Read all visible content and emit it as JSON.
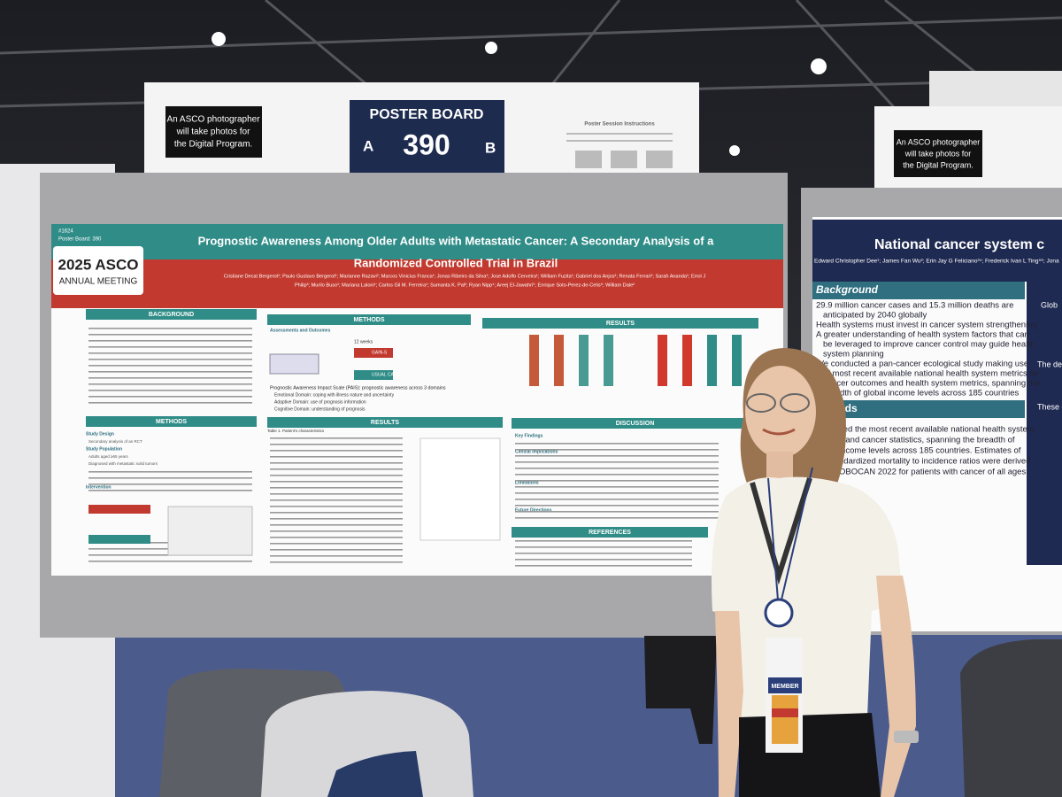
{
  "signs": {
    "photographer_left": [
      "An ASCO photographer",
      "will take photos for",
      "the Digital Program."
    ],
    "photographer_right": [
      "An ASCO photographer",
      "will take photos for",
      "the Digital Program."
    ]
  },
  "poster_board": {
    "label": "POSTER BOARD",
    "left": "A",
    "number": "390",
    "right": "B",
    "instructions": "Poster Session Instructions"
  },
  "poster": {
    "id": "#1624",
    "board": "Poster Board: 390",
    "logo": "2025 ASCO",
    "logo_sub": "ANNUAL MEETING",
    "title": [
      "Prognostic Awareness Among Older Adults with Metastatic Cancer: A Secondary Analysis of a",
      "Randomized Controlled Trial in Brazil"
    ],
    "authors": [
      "Cristiane Decat Bergerot¹; Paulo Gustavo Bergerot¹; Marianne Razavi²; Marcos Vinicius Franca¹; Jonas Ribeiro da Silva¹; Jose Adolfo Cerveira¹; William Fuzita¹; Gabriel dos Anjos¹; Renata Ferrari¹; Sarah Ananda¹; Errol J",
      "Philip³; Murilo Buso¹; Mariana Laloni¹; Carlos Gil M. Ferreira¹; Sumanta K. Pal²; Ryan Nipp⁴; Areej El-Jawahri⁵; Enrique Soto-Perez-de-Celis⁶; William Dale²"
    ],
    "headings": [
      "BACKGROUND",
      "METHODS",
      "RESULTS",
      "METHODS",
      "RESULTS",
      "DISCUSSION",
      "REFERENCES"
    ],
    "subheadings": [
      "Assessments and Outcomes",
      "Study Design",
      "Study Population",
      "Intervention",
      "Key Findings",
      "Clinical Implications",
      "Limitations",
      "Future Directions"
    ],
    "labels": [
      "12 weeks",
      "GAIN-S",
      "USUAL CARE",
      "Prognostic Awareness Impact Scale (PAIS): prognostic awareness across 3 domains",
      "Emotional Domain: coping with illness nature and uncertainty",
      "Adaptive Domain: use of prognosis information",
      "Cognitive Domain: understanding of prognosis",
      "Table 1. Patient's characteristics",
      "Secondary analysis of an RCT",
      "Adults aged ≥65 years",
      "Diagnosed with metastatic solid tumors"
    ]
  },
  "right_poster": {
    "title": "National cancer system c",
    "authors": "Edward Christopher Dee¹; James Fan Wu²; Erin Jay G Feliciano³⁴; Frederick Ivan L Ting⁵⁶; Jona",
    "heading": "Background",
    "bullets": [
      "29.9 million cancer cases and 15.3 million deaths are",
      "anticipated by 2040 globally",
      "Health systems must invest in cancer system strengthening",
      "A greater understanding of health system factors that can",
      "be leveraged to improve cancer control may guide health",
      "system planning",
      "We conducted a pan-cancer ecological study making use",
      "of most recent available national health system metrics for",
      "cancer outcomes and health system metrics, spanning the",
      "breadth of global income levels across 185 countries"
    ],
    "heading2": "hods",
    "method_lines": [
      "sed the most recent available national health system",
      "s and cancer statistics, spanning the breadth of",
      "income levels across 185 countries. Estimates of",
      "ndardized mortality to incidence ratios were derived",
      "OBOCAN 2022 for patients with cancer of all ages."
    ],
    "side": [
      "Glob",
      "The deg",
      "These e"
    ]
  },
  "badge": "MEMBER"
}
